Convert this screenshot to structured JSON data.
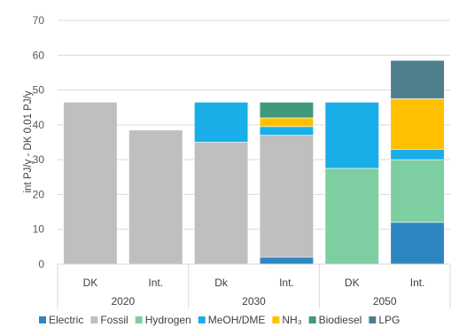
{
  "chart_data": {
    "type": "bar",
    "stacked": true,
    "ylabel": "int PJ/y - DK 0.01 PJ/y",
    "ylim": [
      0,
      70
    ],
    "yticks": [
      0,
      10,
      20,
      30,
      40,
      50,
      60,
      70
    ],
    "grid": true,
    "legend_position": "bottom",
    "groups": [
      {
        "label": "2020",
        "categories": [
          "DK",
          "Int."
        ]
      },
      {
        "label": "2030",
        "categories": [
          "Dk",
          "Int."
        ]
      },
      {
        "label": "2050",
        "categories": [
          "DK",
          "Int."
        ]
      }
    ],
    "categories": [
      "DK",
      "Int.",
      "Dk",
      "Int.",
      "DK",
      "Int."
    ],
    "series": [
      {
        "name": "Electric",
        "color": "#2E86C1",
        "values": [
          0,
          0,
          0,
          2,
          0,
          12
        ]
      },
      {
        "name": "Fossil",
        "color": "#BFBFBF",
        "values": [
          46.5,
          38.5,
          35,
          35,
          0,
          0
        ]
      },
      {
        "name": "Hydrogen",
        "color": "#7DCEA0",
        "values": [
          0,
          0,
          0,
          0,
          27.5,
          18
        ]
      },
      {
        "name": "MeOH/DME",
        "color": "#1AAEE8",
        "values": [
          0,
          0,
          11.5,
          2.5,
          19,
          3
        ]
      },
      {
        "name": "NH₃",
        "color": "#FFC000",
        "values": [
          0,
          0,
          0,
          2.5,
          0,
          14.5
        ]
      },
      {
        "name": "Biodiesel",
        "color": "#3E9A7A",
        "values": [
          0,
          0,
          0,
          4.5,
          0,
          0
        ]
      },
      {
        "name": "LPG",
        "color": "#4F7E8C",
        "values": [
          0,
          0,
          0,
          0,
          0,
          11
        ]
      }
    ]
  }
}
